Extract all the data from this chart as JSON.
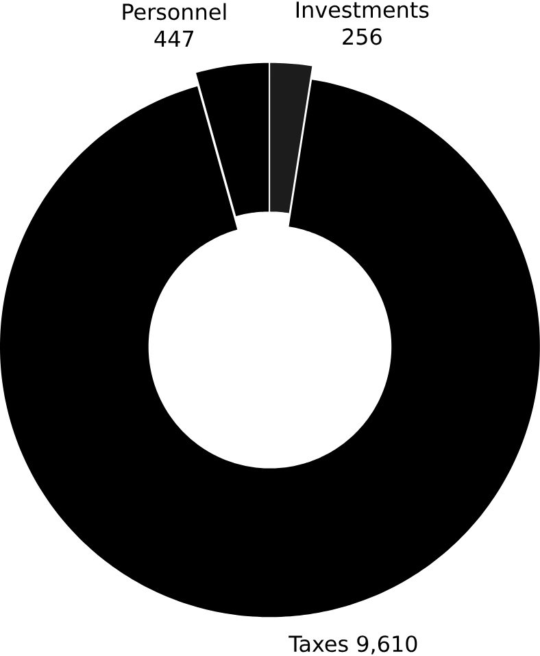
{
  "chart_data": {
    "type": "donut",
    "categories": [
      "Investments",
      "Taxes",
      "Personnel"
    ],
    "values": [
      256,
      9610,
      447
    ],
    "value_labels": [
      "256",
      "9,610",
      "447"
    ],
    "colors": [
      "#1c1c1c",
      "#000000",
      "#000000"
    ],
    "data_labels": true
  }
}
